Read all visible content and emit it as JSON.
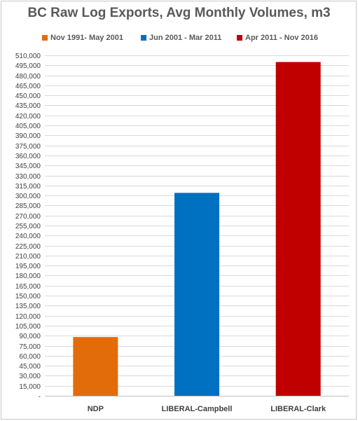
{
  "chart_data": {
    "type": "bar",
    "title": "BC Raw Log Exports, Avg Monthly Volumes, m3",
    "xlabel": "",
    "ylabel": "",
    "ylim": [
      0,
      510000
    ],
    "ytick_step": 15000,
    "yticks": [
      "-",
      "15,000",
      "30,000",
      "45,000",
      "60,000",
      "75,000",
      "90,000",
      "105,000",
      "120,000",
      "135,000",
      "150,000",
      "165,000",
      "180,000",
      "195,000",
      "210,000",
      "225,000",
      "240,000",
      "255,000",
      "270,000",
      "285,000",
      "300,000",
      "315,000",
      "330,000",
      "345,000",
      "360,000",
      "375,000",
      "390,000",
      "405,000",
      "420,000",
      "435,000",
      "450,000",
      "465,000",
      "480,000",
      "495,000",
      "510,000"
    ],
    "categories": [
      "NDP",
      "LIBERAL-Campbell",
      "LIBERAL-Clark"
    ],
    "series": [
      {
        "name": "Nov 1991- May 2001",
        "color": "#e36c0a",
        "values": [
          88000,
          null,
          null
        ]
      },
      {
        "name": "Jun 2001 - Mar 2011",
        "color": "#0070c0",
        "values": [
          null,
          304000,
          null
        ]
      },
      {
        "name": "Apr 2011 - Nov 2016",
        "color": "#c00000",
        "values": [
          null,
          null,
          500000
        ]
      }
    ],
    "grid": true,
    "legend_position": "top"
  }
}
